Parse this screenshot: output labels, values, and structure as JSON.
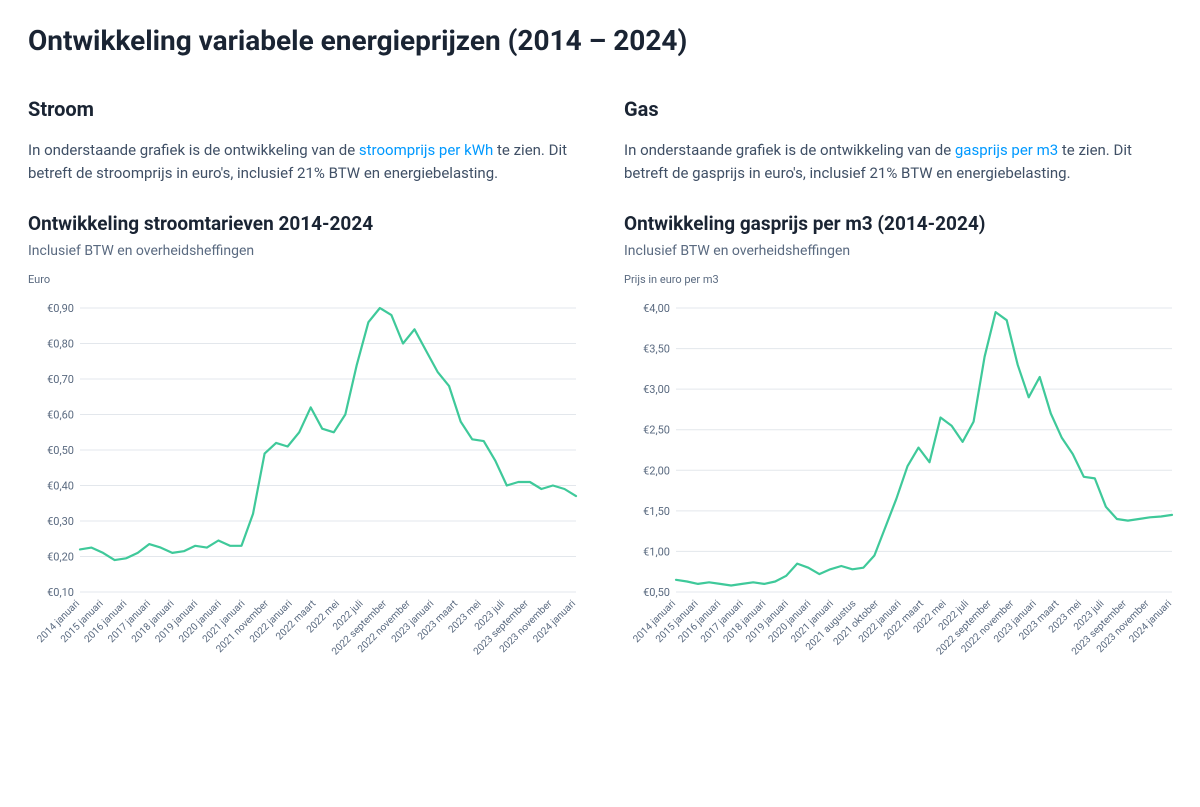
{
  "page_title": "Ontwikkeling variabele energieprijzen (2014 – 2024)",
  "stroom": {
    "section_title": "Stroom",
    "lead_pre": "In onderstaande grafiek is de ontwikkeling van de ",
    "lead_link": "stroomprijs per kWh",
    "lead_post": " te zien. Dit betreft de stroomprijs in euro's, inclusief 21% BTW en energiebelasting.",
    "chart_title": "Ontwikkeling stroomtarieven 2014-2024",
    "chart_subtitle": "Inclusief BTW en overheidsheffingen",
    "axis_caption": "Euro",
    "chart": {
      "type": "line",
      "line_color": "#3fc99a",
      "line_width": 2.2,
      "background_color": "#ffffff",
      "grid_color": "#e3e7ec",
      "tick_font_size": 11,
      "xtick_font_size": 10,
      "ylim": [
        0.1,
        0.9
      ],
      "yticks": [
        0.1,
        0.2,
        0.3,
        0.4,
        0.5,
        0.6,
        0.7,
        0.8,
        0.9
      ],
      "ytick_labels": [
        "€0,10",
        "€0,20",
        "€0,30",
        "€0,40",
        "€0,50",
        "€0,60",
        "€0,70",
        "€0,80",
        "€0,90"
      ],
      "x_labels": [
        "2014 januari",
        "2015 januari",
        "2016 januari",
        "2017 januari",
        "2018 januari",
        "2019 januari",
        "2020 januari",
        "2021 januari",
        "2021 november",
        "2022 januari",
        "2022 maart",
        "2022 mei",
        "2022 juli",
        "2022 september",
        "2022 november",
        "2023 januari",
        "2023 maart",
        "2023 mei",
        "2023 juli",
        "2023 september",
        "2023 november",
        "2024 januari"
      ],
      "values": [
        0.22,
        0.225,
        0.21,
        0.19,
        0.195,
        0.21,
        0.235,
        0.225,
        0.21,
        0.215,
        0.23,
        0.225,
        0.245,
        0.23,
        0.23,
        0.32,
        0.49,
        0.52,
        0.51,
        0.55,
        0.62,
        0.56,
        0.55,
        0.6,
        0.74,
        0.86,
        0.9,
        0.88,
        0.8,
        0.84,
        0.78,
        0.72,
        0.68,
        0.58,
        0.53,
        0.525,
        0.47,
        0.4,
        0.41,
        0.41,
        0.39,
        0.4,
        0.39,
        0.37
      ]
    }
  },
  "gas": {
    "section_title": "Gas",
    "lead_pre": "In onderstaande grafiek is de ontwikkeling van de ",
    "lead_link": "gasprijs per m3",
    "lead_post": " te zien. Dit betreft de gasprijs in euro's, inclusief 21% BTW en energiebelasting.",
    "chart_title": "Ontwikkeling gasprijs per m3 (2014-2024)",
    "chart_subtitle": "Inclusief BTW en overheidsheffingen",
    "axis_caption": "Prijs in euro per m3",
    "chart": {
      "type": "line",
      "line_color": "#3fc99a",
      "line_width": 2.2,
      "background_color": "#ffffff",
      "grid_color": "#e3e7ec",
      "tick_font_size": 11,
      "xtick_font_size": 10,
      "ylim": [
        0.5,
        4.0
      ],
      "yticks": [
        0.5,
        1.0,
        1.5,
        2.0,
        2.5,
        3.0,
        3.5,
        4.0
      ],
      "ytick_labels": [
        "€0,50",
        "€1,00",
        "€1,50",
        "€2,00",
        "€2,50",
        "€3,00",
        "€3,50",
        "€4,00"
      ],
      "x_labels": [
        "2014 januari",
        "2015 januari",
        "2016 januari",
        "2017 januari",
        "2018 januari",
        "2019 januari",
        "2020 januari",
        "2021 januari",
        "2021 augustus",
        "2021 oktober",
        "2022 januari",
        "2022 maart",
        "2022 mei",
        "2022 juli",
        "2022 september",
        "2022 november",
        "2023 januari",
        "2023 maart",
        "2023 mei",
        "2023 juli",
        "2023 september",
        "2023 november",
        "2024 januari"
      ],
      "values": [
        0.65,
        0.63,
        0.6,
        0.62,
        0.6,
        0.58,
        0.6,
        0.62,
        0.6,
        0.63,
        0.7,
        0.85,
        0.8,
        0.72,
        0.78,
        0.82,
        0.78,
        0.8,
        0.95,
        1.3,
        1.65,
        2.05,
        2.28,
        2.1,
        2.65,
        2.55,
        2.35,
        2.6,
        3.4,
        3.95,
        3.85,
        3.3,
        2.9,
        3.15,
        2.7,
        2.4,
        2.2,
        1.92,
        1.9,
        1.55,
        1.4,
        1.38,
        1.4,
        1.42,
        1.43,
        1.45
      ]
    }
  }
}
